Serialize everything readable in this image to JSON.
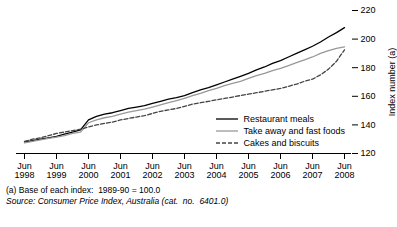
{
  "chart_data": {
    "type": "line",
    "ylabel": "Index number (a)",
    "ylim": [
      120,
      220
    ],
    "yticks": [
      120,
      140,
      160,
      180,
      200,
      220
    ],
    "annotations": [
      "(a) Base of each index:  1989-90 = 100.0",
      "Source: Consumer Price Index, Australia (cat.  no.  6401.0)"
    ],
    "categories": [
      "Jun\n1998",
      null,
      null,
      null,
      "Jun\n1999",
      null,
      null,
      null,
      "Jun\n2000",
      null,
      null,
      null,
      "Jun\n2001",
      null,
      null,
      null,
      "Jun\n2002",
      null,
      null,
      null,
      "Jun\n2003",
      null,
      null,
      null,
      "Jun\n2004",
      null,
      null,
      null,
      "Jun\n2005",
      null,
      null,
      null,
      "Jun\n2006",
      null,
      null,
      null,
      "Jun\n2007",
      null,
      null,
      null,
      "Jun\n2008"
    ],
    "series": [
      {
        "name": "Restaurant meals",
        "color": "#000000",
        "line_style": "solid",
        "values": [
          128.0,
          129.0,
          130.0,
          131.0,
          132.0,
          133.5,
          135.0,
          136.5,
          143.5,
          146.0,
          147.5,
          148.5,
          150.0,
          151.5,
          152.5,
          153.5,
          155.0,
          156.5,
          158.0,
          159.0,
          160.5,
          162.5,
          164.5,
          166.0,
          168.0,
          170.0,
          172.0,
          174.0,
          176.0,
          178.5,
          180.5,
          183.0,
          185.0,
          187.5,
          190.0,
          192.5,
          195.0,
          198.0,
          201.5,
          204.5,
          208.0
        ]
      },
      {
        "name": "Take away and fast foods",
        "color": "#999999",
        "line_style": "solid",
        "values": [
          127.5,
          128.5,
          129.5,
          130.5,
          131.5,
          132.5,
          134.0,
          135.0,
          141.5,
          143.5,
          145.0,
          146.0,
          147.5,
          149.0,
          150.0,
          151.0,
          152.5,
          154.0,
          155.5,
          157.0,
          158.5,
          160.5,
          162.0,
          164.0,
          165.5,
          167.5,
          169.0,
          170.5,
          172.5,
          174.5,
          176.0,
          178.0,
          179.5,
          181.5,
          183.5,
          185.5,
          187.5,
          190.0,
          192.0,
          193.5,
          194.5
        ]
      },
      {
        "name": "Cakes and biscuits",
        "color": "#444444",
        "line_style": "dashed",
        "values": [
          128.5,
          130.0,
          131.0,
          132.5,
          134.0,
          135.0,
          136.0,
          137.0,
          138.5,
          140.0,
          141.0,
          142.0,
          143.5,
          144.5,
          145.5,
          146.5,
          148.0,
          149.5,
          150.5,
          151.5,
          153.0,
          154.5,
          155.5,
          156.5,
          157.5,
          158.5,
          159.5,
          160.5,
          161.5,
          162.5,
          163.5,
          164.5,
          165.5,
          167.0,
          168.5,
          170.5,
          172.0,
          175.0,
          179.0,
          184.5,
          192.5
        ]
      }
    ],
    "grid": false,
    "legend": "lower right"
  }
}
